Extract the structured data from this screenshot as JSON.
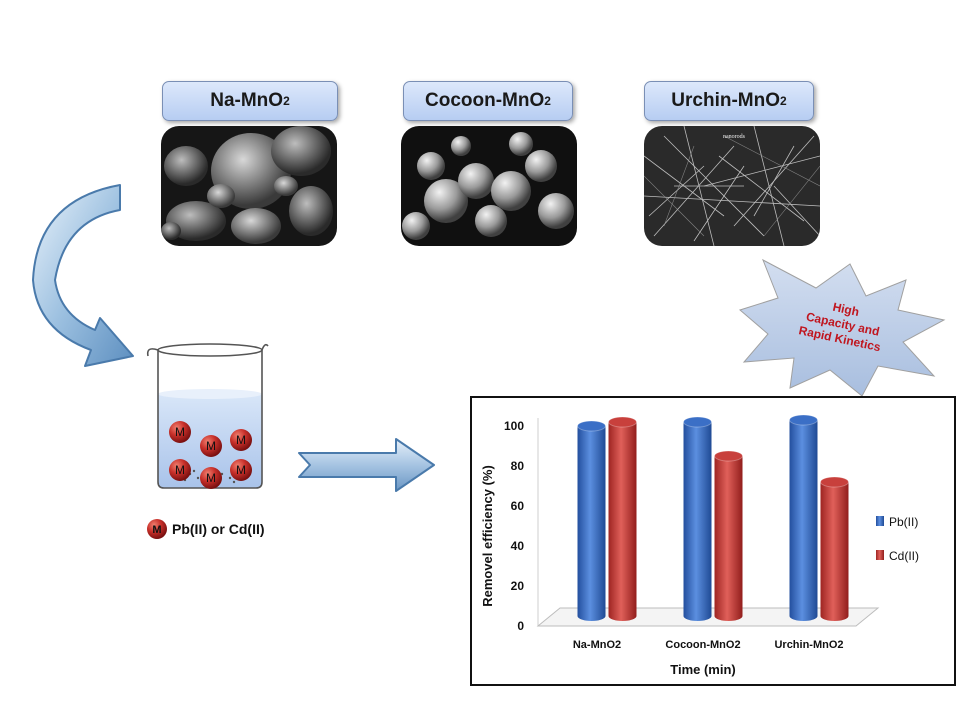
{
  "materials": [
    {
      "name": "Na-MnO",
      "sub": "2"
    },
    {
      "name": "Cocoon-MnO",
      "sub": "2"
    },
    {
      "name": "Urchin-MnO",
      "sub": "2"
    }
  ],
  "sem_annotation": "nanorods",
  "beaker": {
    "ion_symbol": "M",
    "legend_label": "Pb(II) or Cd(II)"
  },
  "starburst": {
    "lines": [
      "High",
      "Capacity and",
      "Rapid Kinetics"
    ]
  },
  "colors": {
    "pb": "#3b6fc6",
    "cd": "#c8403c",
    "starburst": "#b9cbe6",
    "starburst_text": "#c0161f",
    "arrow": "#5d8fc0"
  },
  "chart_data": {
    "type": "bar",
    "title": "",
    "xlabel": "Time (min)",
    "ylabel": "Removel efficiency (%)",
    "categories": [
      "Na-MnO2",
      "Cocoon-MnO2",
      "Urchin-MnO2"
    ],
    "series": [
      {
        "name": "Pb(II)",
        "values": [
          98,
          100,
          101
        ]
      },
      {
        "name": "Cd(II)",
        "values": [
          100,
          83,
          70
        ]
      }
    ],
    "ylim": [
      0,
      100
    ],
    "yticks": [
      0,
      20,
      40,
      60,
      80,
      100
    ],
    "legend": "right",
    "grid": false
  }
}
